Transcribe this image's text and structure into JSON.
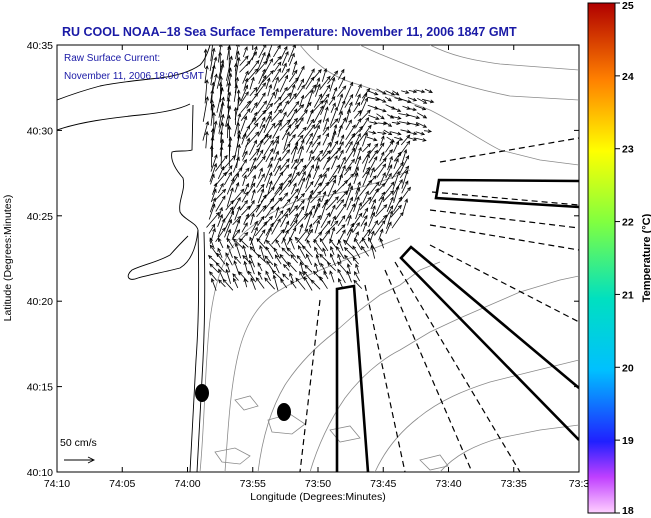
{
  "chart_data": {
    "type": "vector_map",
    "title": "RU COOL  NOAA–18  Sea Surface Temperature:  November 11, 2006 1847 GMT",
    "annotations": {
      "line1": "Raw Surface Current:",
      "line2": "November 11, 2006 18:00 GMT",
      "scale_label": "50 cm/s"
    },
    "xlabel": "Longitude (Degrees:Minutes)",
    "ylabel": "Latitude (Degrees:Minutes)",
    "x_ticks": [
      "74:10",
      "74:05",
      "74:00",
      "73:55",
      "73:50",
      "73:45",
      "73:40",
      "73:35",
      "73:3"
    ],
    "y_ticks": [
      "40:35",
      "40:30",
      "40:25",
      "40:20",
      "40:15",
      "40:10"
    ],
    "colorbar": {
      "label": "Temperature (°C)",
      "ticks": [
        "25",
        "24",
        "23",
        "22",
        "21",
        "20",
        "19",
        "18"
      ],
      "range": [
        18,
        25
      ]
    },
    "xlim_minutes": [
      -4450,
      -4410
    ],
    "ylim_minutes": [
      2410,
      2435
    ],
    "scale_vector_cms": 50,
    "grid": false,
    "legend": "none"
  }
}
